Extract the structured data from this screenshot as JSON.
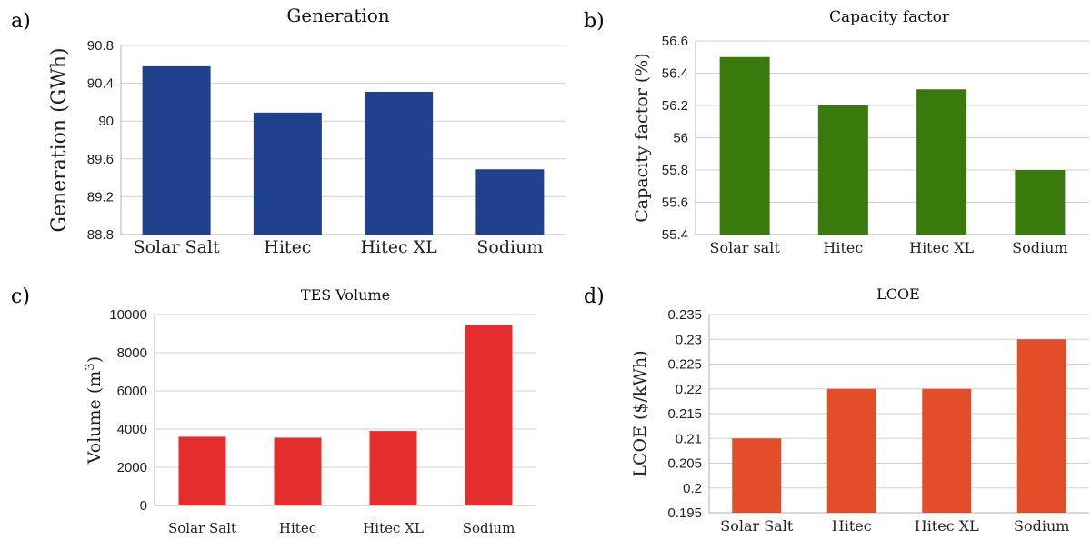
{
  "chart_data": [
    {
      "panel": "a)",
      "type": "bar",
      "title": "Generation",
      "ylabel": "Generation (GWh)",
      "categories": [
        "Solar Salt",
        "Hitec",
        "Hitec XL",
        "Sodium"
      ],
      "values": [
        90.58,
        90.09,
        90.31,
        89.49
      ],
      "ylim": [
        88.8,
        90.8
      ],
      "yticks": [
        "88.8",
        "89.2",
        "89.6",
        "90",
        "90.4",
        "90.8"
      ],
      "color": "#21418e",
      "grid": true
    },
    {
      "panel": "b)",
      "type": "bar",
      "title": "Capacity factor",
      "ylabel": "Capacity factor (%)",
      "categories": [
        "Solar salt",
        "Hitec",
        "Hitec XL",
        "Sodium"
      ],
      "values": [
        56.5,
        56.2,
        56.3,
        55.8
      ],
      "ylim": [
        55.4,
        56.6
      ],
      "yticks": [
        "55.4",
        "55.6",
        "55.8",
        "56",
        "56.2",
        "56.4",
        "56.6"
      ],
      "color": "#3a790b",
      "grid": true
    },
    {
      "panel": "c)",
      "type": "bar",
      "title": "TES Volume",
      "ylabel": "Volume (m",
      "ylabel_sup": "3",
      "ylabel_end": ")",
      "categories": [
        "Solar Salt",
        "Hitec",
        "Hitec XL",
        "Sodium"
      ],
      "values": [
        3600,
        3550,
        3900,
        9450
      ],
      "ylim": [
        0,
        10000
      ],
      "yticks": [
        "0",
        "2000",
        "4000",
        "6000",
        "8000",
        "10000"
      ],
      "color": "#e52d2d",
      "grid": true
    },
    {
      "panel": "d)",
      "type": "bar",
      "title": "LCOE",
      "ylabel": "LCOE ($/kWh)",
      "categories": [
        "Solar Salt",
        "Hitec",
        "Hitec XL",
        "Sodium"
      ],
      "values": [
        0.21,
        0.22,
        0.22,
        0.23
      ],
      "ylim": [
        0.195,
        0.235
      ],
      "yticks": [
        "0.195",
        "0.2",
        "0.205",
        "0.21",
        "0.215",
        "0.22",
        "0.225",
        "0.23",
        "0.235"
      ],
      "color": "#e44d29",
      "grid": true
    }
  ]
}
